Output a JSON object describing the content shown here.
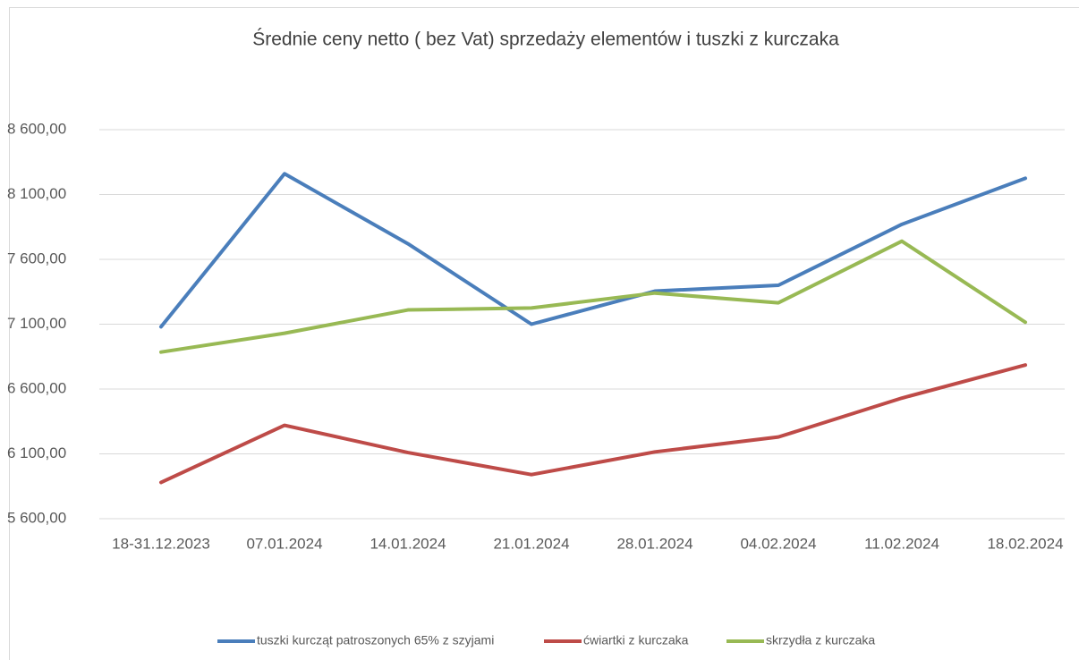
{
  "chart_data": {
    "type": "line",
    "title": "Średnie ceny netto ( bez Vat) sprzedaży elementów i tuszki z kurczaka",
    "categories": [
      "18-31.12.2023",
      "07.01.2024",
      "14.01.2024",
      "21.01.2024",
      "28.01.2024",
      "04.02.2024",
      "11.02.2024",
      "18.02.2024"
    ],
    "series": [
      {
        "name": "tuszki kurcząt patroszonych 65% z szyjami",
        "color": "#4a7ebb",
        "values": [
          7080,
          8260,
          7720,
          7100,
          7355,
          7400,
          7870,
          8225
        ]
      },
      {
        "name": "ćwiartki z kurczaka",
        "color": "#be4b48",
        "values": [
          5880,
          6320,
          6110,
          5940,
          6115,
          6230,
          6530,
          6785
        ]
      },
      {
        "name": "skrzydła z kurczaka",
        "color": "#98b954",
        "values": [
          6885,
          7030,
          7210,
          7225,
          7340,
          7265,
          7740,
          7115
        ]
      }
    ],
    "ylim": [
      5600,
      8600
    ],
    "yticks": [
      {
        "value": 5600,
        "label": "5 600,00"
      },
      {
        "value": 6100,
        "label": "6 100,00"
      },
      {
        "value": 6600,
        "label": "6 600,00"
      },
      {
        "value": 7100,
        "label": "7 100,00"
      },
      {
        "value": 7600,
        "label": "7 600,00"
      },
      {
        "value": 8100,
        "label": "8 100,00"
      },
      {
        "value": 8600,
        "label": "8 600,00"
      }
    ],
    "grid": true,
    "legend": "bottom"
  }
}
